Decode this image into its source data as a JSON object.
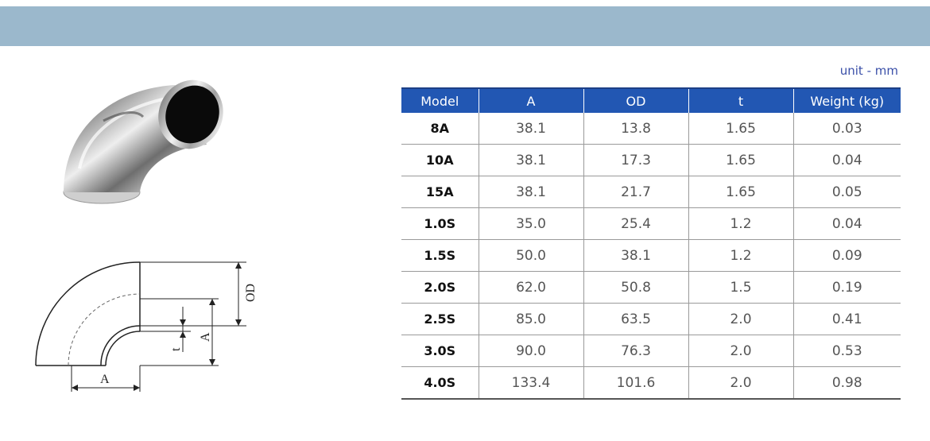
{
  "unit_label": "unit - mm",
  "table": {
    "headers": [
      "Model",
      "A",
      "OD",
      "t",
      "Weight (kg)"
    ],
    "rows": [
      [
        "8A",
        "38.1",
        "13.8",
        "1.65",
        "0.03"
      ],
      [
        "10A",
        "38.1",
        "17.3",
        "1.65",
        "0.04"
      ],
      [
        "15A",
        "38.1",
        "21.7",
        "1.65",
        "0.05"
      ],
      [
        "1.0S",
        "35.0",
        "25.4",
        "1.2",
        "0.04"
      ],
      [
        "1.5S",
        "50.0",
        "38.1",
        "1.2",
        "0.09"
      ],
      [
        "2.0S",
        "62.0",
        "50.8",
        "1.5",
        "0.19"
      ],
      [
        "2.5S",
        "85.0",
        "63.5",
        "2.0",
        "0.41"
      ],
      [
        "3.0S",
        "90.0",
        "76.3",
        "2.0",
        "0.53"
      ],
      [
        "4.0S",
        "133.4",
        "101.6",
        "2.0",
        "0.98"
      ]
    ]
  },
  "drawing_labels": {
    "od": "OD",
    "a_vertical": "A",
    "t": "t",
    "a_horizontal": "A"
  },
  "colors": {
    "header_band": "#9bb8cc",
    "table_header": "#2257b3",
    "unit_text": "#3a4fa8"
  }
}
